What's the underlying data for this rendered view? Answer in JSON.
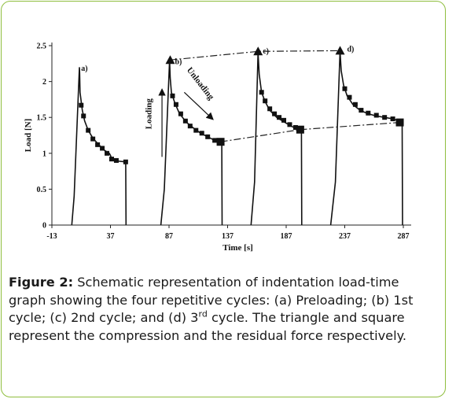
{
  "chart_data": {
    "type": "line",
    "xlabel": "Time [s]",
    "ylabel": "Load [N]",
    "xlim": [
      -13,
      300
    ],
    "ylim": [
      0,
      2.5
    ],
    "xticks": [
      -13,
      37,
      87,
      137,
      187,
      237,
      287
    ],
    "yticks": [
      0,
      0.5,
      1,
      1.5,
      2,
      2.5
    ],
    "ytick_labels": [
      "0",
      "0.5",
      "1",
      "1.5",
      "2",
      "2.5"
    ],
    "grid": false,
    "legend": "none",
    "series": [
      {
        "values_note_free": true,
        "x": [
          4,
          6,
          10.5,
          10.7,
          11,
          13,
          15,
          18,
          22,
          27,
          32,
          36,
          37,
          38,
          38.2,
          50,
          50.3
        ],
        "y": [
          0,
          0.4,
          2.2,
          2.12,
          1.85,
          1.6,
          1.45,
          1.32,
          1.21,
          1.12,
          1.04,
          1.0,
          0.97,
          0.92,
          0.9,
          0.88,
          0
        ],
        "steps": [
          [
            12,
            1.67
          ],
          [
            14,
            1.52
          ],
          [
            18,
            1.32
          ],
          [
            22,
            1.2
          ],
          [
            26,
            1.12
          ],
          [
            30,
            1.07
          ],
          [
            34,
            1.0
          ],
          [
            38,
            0.92
          ],
          [
            42,
            0.9
          ],
          [
            50,
            0.88
          ]
        ]
      },
      {
        "x": [
          80,
          83,
          87.5,
          88,
          89,
          92,
          96,
          102,
          108,
          114,
          120,
          126,
          131,
          132,
          132.3
        ],
        "y": [
          0,
          0.5,
          2.3,
          2.05,
          1.85,
          1.7,
          1.55,
          1.43,
          1.35,
          1.28,
          1.23,
          1.18,
          1.15,
          1.12,
          0
        ],
        "steps": [
          [
            90,
            1.8
          ],
          [
            93,
            1.68
          ],
          [
            97,
            1.55
          ],
          [
            101,
            1.45
          ],
          [
            105,
            1.38
          ],
          [
            110,
            1.32
          ],
          [
            115,
            1.28
          ],
          [
            120,
            1.23
          ],
          [
            126,
            1.18
          ],
          [
            131,
            1.14
          ]
        ]
      },
      {
        "x": [
          157,
          160,
          163,
          164,
          166,
          169,
          173,
          179,
          185,
          191,
          196,
          200,
          200.3
        ],
        "y": [
          0,
          0.6,
          2.4,
          2.1,
          1.85,
          1.72,
          1.6,
          1.5,
          1.44,
          1.38,
          1.34,
          1.32,
          0
        ],
        "steps": [
          [
            166,
            1.85
          ],
          [
            169,
            1.73
          ],
          [
            173,
            1.62
          ],
          [
            177,
            1.55
          ],
          [
            181,
            1.5
          ],
          [
            185,
            1.46
          ],
          [
            190,
            1.4
          ],
          [
            195,
            1.36
          ],
          [
            200,
            1.32
          ]
        ]
      },
      {
        "x": [
          225,
          229,
          233,
          234,
          236,
          239,
          244,
          250,
          257,
          264,
          271,
          278,
          284,
          286,
          286.3
        ],
        "y": [
          0,
          0.6,
          2.42,
          2.15,
          1.95,
          1.8,
          1.68,
          1.6,
          1.55,
          1.52,
          1.5,
          1.48,
          1.45,
          1.43,
          0
        ],
        "steps": [
          [
            237,
            1.9
          ],
          [
            241,
            1.78
          ],
          [
            246,
            1.68
          ],
          [
            251,
            1.6
          ],
          [
            257,
            1.56
          ],
          [
            264,
            1.53
          ],
          [
            271,
            1.5
          ],
          [
            278,
            1.48
          ],
          [
            285,
            1.44
          ]
        ]
      }
    ],
    "triangles": [
      [
        88,
        2.3
      ],
      [
        163,
        2.42
      ],
      [
        233,
        2.43
      ]
    ],
    "squares": [
      [
        131,
        1.16
      ],
      [
        199,
        1.33
      ],
      [
        284,
        1.43
      ]
    ],
    "peak_line": [
      [
        88,
        2.3
      ],
      [
        163,
        2.42
      ],
      [
        233,
        2.43
      ]
    ],
    "residual_line": [
      [
        131,
        1.16
      ],
      [
        199,
        1.33
      ],
      [
        284,
        1.43
      ]
    ],
    "peak_labels": [
      {
        "text": "a)",
        "x": 12,
        "y": 2.15
      },
      {
        "text": "b)",
        "x": 92,
        "y": 2.24
      },
      {
        "text": "c)",
        "x": 167,
        "y": 2.39
      },
      {
        "text": "d)",
        "x": 239,
        "y": 2.42
      }
    ],
    "annotations": [
      {
        "text": "Loading",
        "x": 72,
        "y": 1.55,
        "rotate": -90
      },
      {
        "text": "Unloading",
        "x": 112,
        "y": 1.95,
        "rotate": 52
      }
    ],
    "loading_arrow": {
      "x": 81,
      "y1": 0.95,
      "y2": 1.88
    },
    "unloading_arrow": {
      "x1": 100,
      "y1": 1.85,
      "x2": 124,
      "y2": 1.48
    }
  },
  "caption": {
    "label": "Figure 2:",
    "text_before_sup": " Schematic representation of indentation load-time graph showing the four repetitive cycles: (a) Preloading; (b) 1st cycle; (c) 2nd cycle; and (d) 3",
    "sup": "rd",
    "text_after_sup": " cycle. The triangle and square represent the compression and the residual force respectively."
  }
}
